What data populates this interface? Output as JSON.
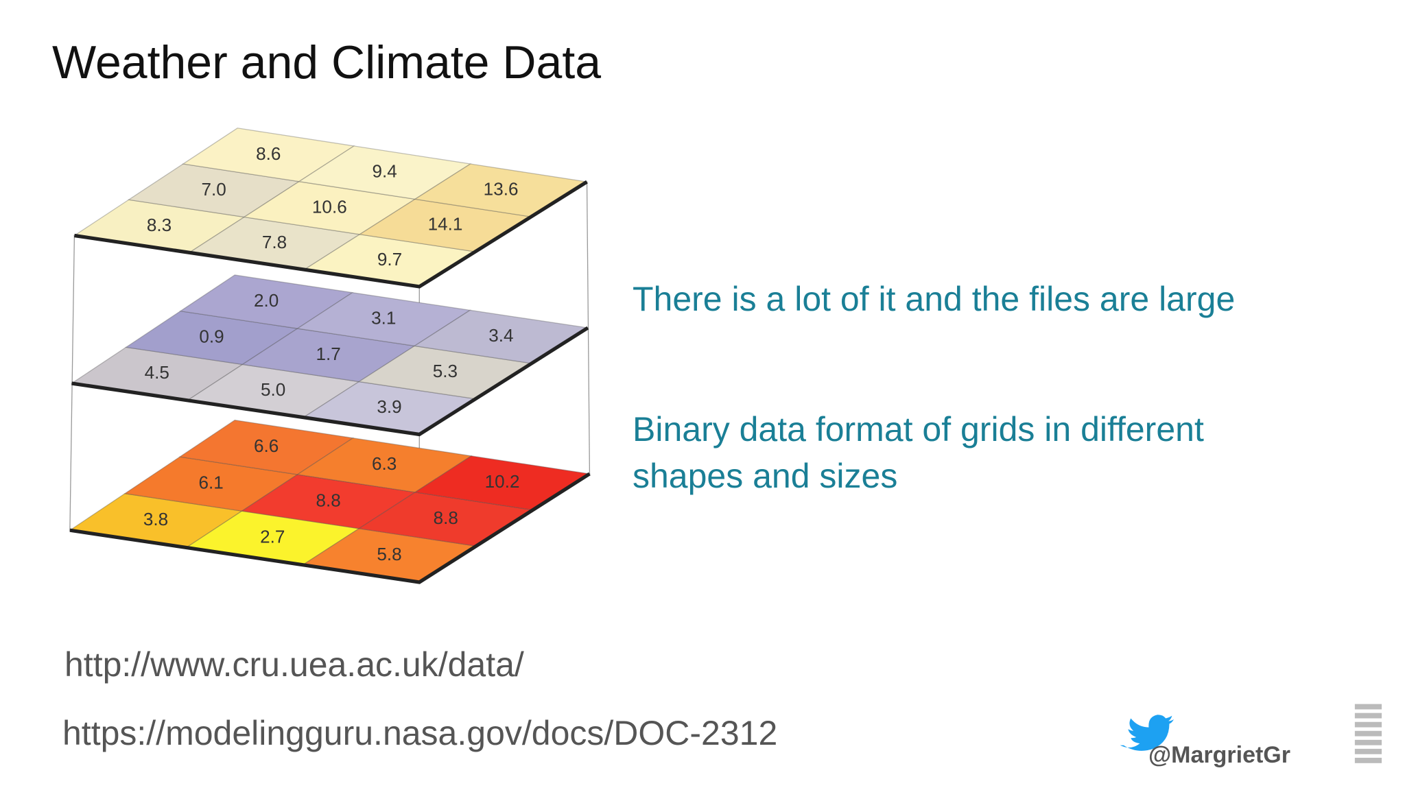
{
  "title": "Weather and Climate Data",
  "layers": [
    {
      "cells": [
        [
          {
            "label": "8.3",
            "color": "#f8f0c2"
          },
          {
            "label": "7.8",
            "color": "#e9e3c9"
          },
          {
            "label": "9.7",
            "color": "#fbf3c2"
          }
        ],
        [
          {
            "label": "7.0",
            "color": "#e6dfc8"
          },
          {
            "label": "10.6",
            "color": "#fbf1c0"
          },
          {
            "label": "14.1",
            "color": "#f6dc97"
          }
        ],
        [
          {
            "label": "8.6",
            "color": "#fbf2c5"
          },
          {
            "label": "9.4",
            "color": "#faf3c9"
          },
          {
            "label": "13.6",
            "color": "#f6df9b"
          }
        ]
      ]
    },
    {
      "cells": [
        [
          {
            "label": "4.5",
            "color": "#cbc6cc"
          },
          {
            "label": "5.0",
            "color": "#d3cfd4"
          },
          {
            "label": "3.9",
            "color": "#c8c5da"
          }
        ],
        [
          {
            "label": "0.9",
            "color": "#a29fcc"
          },
          {
            "label": "1.7",
            "color": "#a8a4ce"
          },
          {
            "label": "5.3",
            "color": "#d8d4cb"
          }
        ],
        [
          {
            "label": "2.0",
            "color": "#aba6d0"
          },
          {
            "label": "3.1",
            "color": "#b5b1d4"
          },
          {
            "label": "3.4",
            "color": "#bdbad2"
          }
        ]
      ]
    },
    {
      "cells": [
        [
          {
            "label": "3.8",
            "color": "#f9c02a"
          },
          {
            "label": "2.7",
            "color": "#fbf32c"
          },
          {
            "label": "5.8",
            "color": "#f7822e"
          }
        ],
        [
          {
            "label": "6.1",
            "color": "#f57a2c"
          },
          {
            "label": "8.8",
            "color": "#f23c2e"
          },
          {
            "label": "8.8",
            "color": "#ef3b2c"
          }
        ],
        [
          {
            "label": "6.6",
            "color": "#f47630"
          },
          {
            "label": "6.3",
            "color": "#f57f2d"
          },
          {
            "label": "10.2",
            "color": "#ee2c22"
          }
        ]
      ]
    }
  ],
  "bullets": [
    "There is a lot of it and the files are large",
    "Binary data format of grids in different shapes and sizes"
  ],
  "links": [
    "http://www.cru.uea.ac.uk/data/",
    "https://modelingguru.nasa.gov/docs/DOC-2312"
  ],
  "handle": "@MargrietGr"
}
